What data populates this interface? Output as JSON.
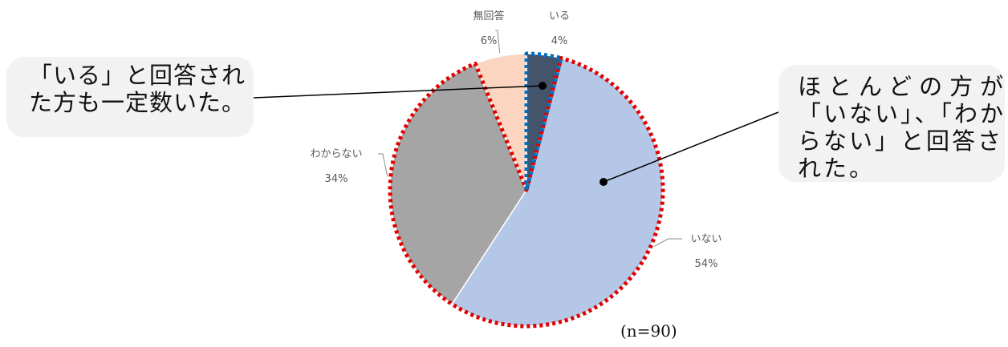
{
  "chart_data": {
    "type": "pie",
    "categories": [
      "いる",
      "いない",
      "わからない",
      "無回答"
    ],
    "values": [
      4,
      54,
      34,
      6
    ],
    "value_labels": [
      "4%",
      "54%",
      "34%",
      "6%"
    ],
    "colors": [
      "#44546a",
      "#b4c7e7",
      "#a5a5a5",
      "#fbd5c0"
    ],
    "note": "(n=90)",
    "legend": "none"
  },
  "callouts": {
    "left": [
      "「いる」と回答され",
      "た方も一定数いた。"
    ],
    "right": [
      "ほとんどの方が",
      "「いない」、「わか",
      "らない」と回答さ",
      "れた。"
    ]
  },
  "highlight_colors": {
    "red": "#e00000",
    "blue": "#0070c0"
  }
}
